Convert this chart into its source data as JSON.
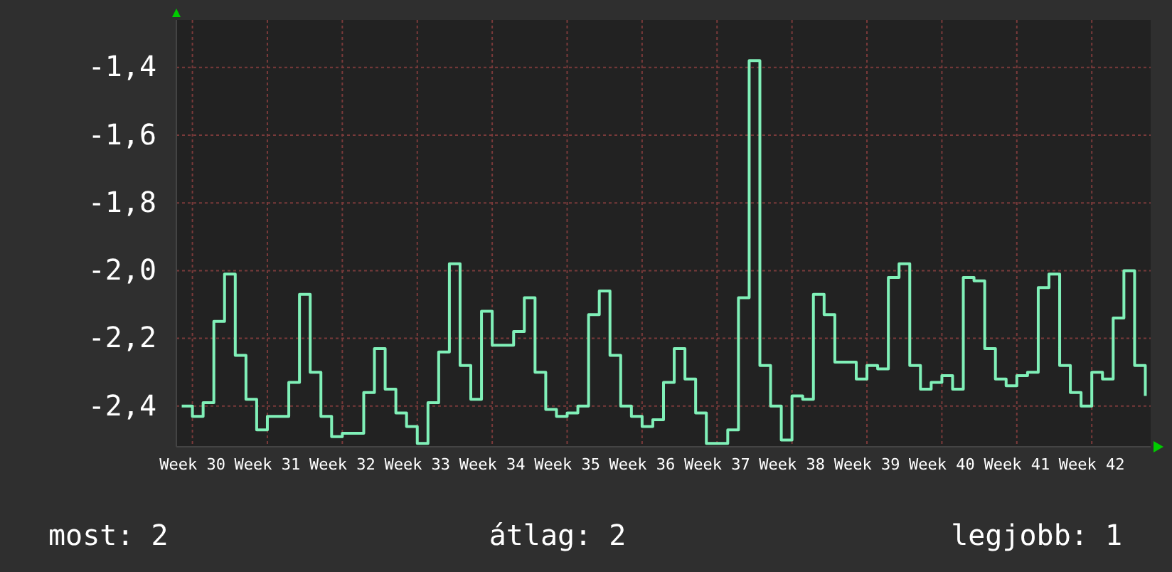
{
  "chart_data": {
    "type": "step",
    "categories": [
      null,
      "Week 30",
      null,
      null,
      null,
      null,
      null,
      null,
      "Week 31",
      null,
      null,
      null,
      null,
      null,
      null,
      "Week 32",
      null,
      null,
      null,
      null,
      null,
      null,
      "Week 33",
      null,
      null,
      null,
      null,
      null,
      null,
      "Week 34",
      null,
      null,
      null,
      null,
      null,
      null,
      "Week 35",
      null,
      null,
      null,
      null,
      null,
      null,
      "Week 36",
      null,
      null,
      null,
      null,
      null,
      null,
      "Week 37",
      null,
      null,
      null,
      null,
      null,
      null,
      "Week 38",
      null,
      null,
      null,
      null,
      null,
      null,
      "Week 39",
      null,
      null,
      null,
      null,
      null,
      null,
      "Week 40",
      null,
      null,
      null,
      null,
      null,
      null,
      "Week 41",
      null,
      null,
      null,
      null,
      null,
      null,
      "Week 42",
      null,
      null,
      null,
      null,
      null
    ],
    "series": [
      {
        "color": "#80f0b8",
        "values": [
          -2.4,
          -2.43,
          -2.39,
          -2.15,
          -2.01,
          -2.25,
          -2.38,
          -2.47,
          -2.43,
          -2.43,
          -2.33,
          -2.07,
          -2.3,
          -2.43,
          -2.49,
          -2.48,
          -2.48,
          -2.36,
          -2.23,
          -2.35,
          -2.42,
          -2.46,
          -2.51,
          -2.39,
          -2.24,
          -1.98,
          -2.28,
          -2.38,
          -2.12,
          -2.22,
          -2.22,
          -2.18,
          -2.08,
          -2.3,
          -2.41,
          -2.43,
          -2.42,
          -2.4,
          -2.13,
          -2.06,
          -2.25,
          -2.4,
          -2.43,
          -2.46,
          -2.44,
          -2.33,
          -2.23,
          -2.32,
          -2.42,
          -2.51,
          -2.51,
          -2.47,
          -2.08,
          -1.38,
          -2.28,
          -2.4,
          -2.5,
          -2.37,
          -2.38,
          -2.07,
          -2.13,
          -2.27,
          -2.27,
          -2.32,
          -2.28,
          -2.29,
          -2.02,
          -1.98,
          -2.28,
          -2.35,
          -2.33,
          -2.31,
          -2.35,
          -2.02,
          -2.03,
          -2.23,
          -2.32,
          -2.34,
          -2.31,
          -2.3,
          -2.05,
          -2.01,
          -2.28,
          -2.36,
          -2.4,
          -2.3,
          -2.32,
          -2.14,
          -2.0,
          -2.28,
          -2.37
        ]
      }
    ],
    "ylim": [
      -2.52,
      -1.26
    ],
    "yticks": [
      {
        "value": -2.4,
        "label": "-2,4"
      },
      {
        "value": -2.2,
        "label": "-2,2"
      },
      {
        "value": -2.0,
        "label": "-2,0"
      },
      {
        "value": -1.8,
        "label": "-1,8"
      },
      {
        "value": -1.6,
        "label": "-1,6"
      },
      {
        "value": -1.4,
        "label": "-1,4"
      }
    ],
    "grid": true,
    "annotations": [
      "most: 2",
      "átlag: 2",
      "legjobb: 1"
    ]
  }
}
